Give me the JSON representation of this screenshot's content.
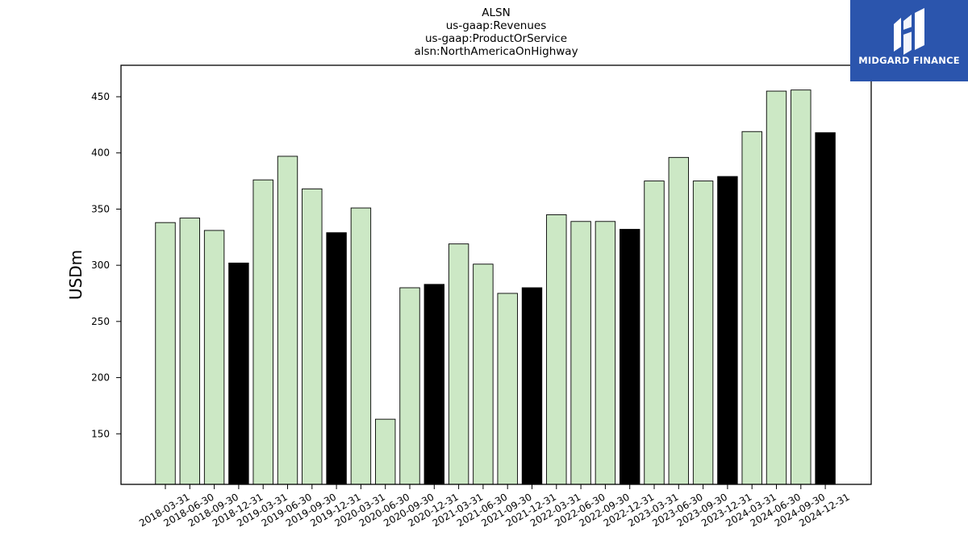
{
  "chart_data": {
    "type": "bar",
    "title_lines": [
      "ALSN",
      "us-gaap:Revenues",
      "us-gaap:ProductOrService",
      "alsn:NorthAmericaOnHighway"
    ],
    "ylabel": "USDm",
    "xlabel": "",
    "ylim": [
      105,
      478
    ],
    "yticks": [
      150,
      200,
      250,
      300,
      350,
      400,
      450
    ],
    "categories": [
      "2018-03-31",
      "2018-06-30",
      "2018-09-30",
      "2018-12-31",
      "2019-03-31",
      "2019-06-30",
      "2019-09-30",
      "2019-12-31",
      "2020-03-31",
      "2020-06-30",
      "2020-09-30",
      "2020-12-31",
      "2021-03-31",
      "2021-06-30",
      "2021-09-30",
      "2021-12-31",
      "2022-03-31",
      "2022-06-30",
      "2022-09-30",
      "2022-12-31",
      "2023-03-31",
      "2023-06-30",
      "2023-09-30",
      "2023-12-31",
      "2024-03-31",
      "2024-06-30",
      "2024-09-30",
      "2024-12-31"
    ],
    "values": [
      338,
      342,
      331,
      302,
      376,
      397,
      368,
      329,
      351,
      163,
      280,
      283,
      319,
      301,
      275,
      280,
      345,
      339,
      339,
      332,
      375,
      396,
      375,
      379,
      419,
      455,
      456,
      418
    ],
    "bar_colors": {
      "quarter": "#cce8c5",
      "year_end": "#000000"
    },
    "grid": false,
    "legend": "none"
  },
  "logo": {
    "text": "MIDGARD FINANCE",
    "color": "#2b55ad"
  }
}
